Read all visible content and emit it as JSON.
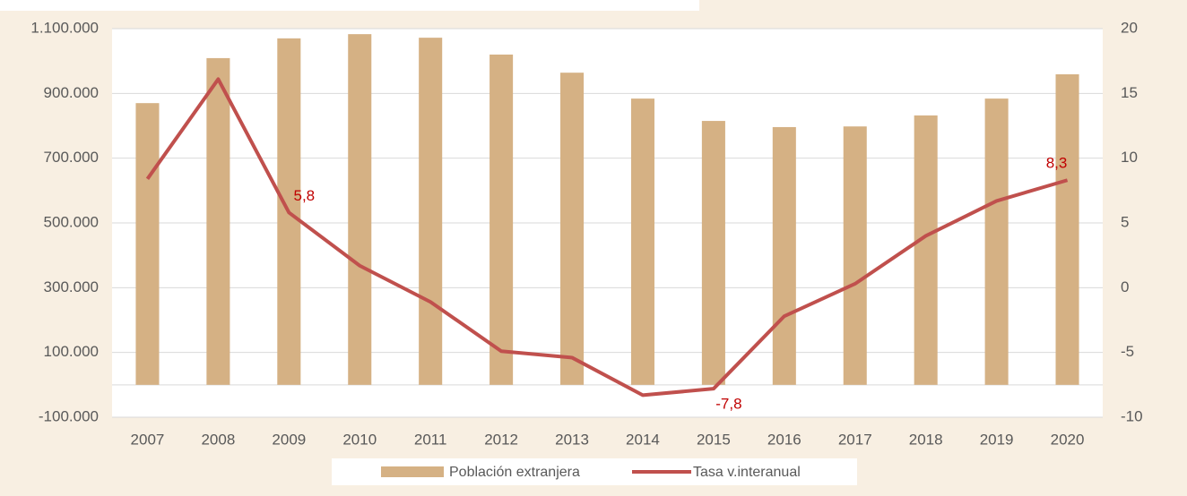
{
  "chart_data": {
    "type": "bar_line",
    "categories": [
      "2007",
      "2008",
      "2009",
      "2010",
      "2011",
      "2012",
      "2013",
      "2014",
      "2015",
      "2016",
      "2017",
      "2018",
      "2019",
      "2020"
    ],
    "series": [
      {
        "name": "Población extranjera",
        "type": "bar",
        "color": "#d5b184",
        "axis": "y",
        "values": [
          870000,
          1009000,
          1070000,
          1083000,
          1072000,
          1020000,
          964000,
          884000,
          815000,
          796000,
          798000,
          832000,
          884000,
          959000
        ]
      },
      {
        "name": "Tasa v.interanual",
        "type": "line",
        "color": "#c0504d",
        "axis": "y2",
        "values": [
          8.4,
          16.1,
          5.8,
          1.7,
          -1.1,
          -4.9,
          -5.4,
          -8.3,
          -7.8,
          -2.2,
          0.3,
          4.0,
          6.7,
          8.3
        ],
        "value_labels": [
          null,
          null,
          "5,8",
          null,
          null,
          null,
          null,
          null,
          "-7,8",
          null,
          null,
          null,
          null,
          "8,3"
        ]
      }
    ],
    "ylim": [
      -100000,
      1100000
    ],
    "yticks": [
      {
        "value": -100000,
        "label": "-100.000"
      },
      {
        "value": 100000,
        "label": "100.000"
      },
      {
        "value": 300000,
        "label": "300.000"
      },
      {
        "value": 500000,
        "label": "500.000"
      },
      {
        "value": 700000,
        "label": "700.000"
      },
      {
        "value": 900000,
        "label": "900.000"
      },
      {
        "value": 1100000,
        "label": "1.100.000"
      }
    ],
    "y2lim": [
      -10,
      20
    ],
    "y2ticks": [
      -10,
      -5,
      0,
      5,
      10,
      15,
      20
    ],
    "grid": true
  }
}
